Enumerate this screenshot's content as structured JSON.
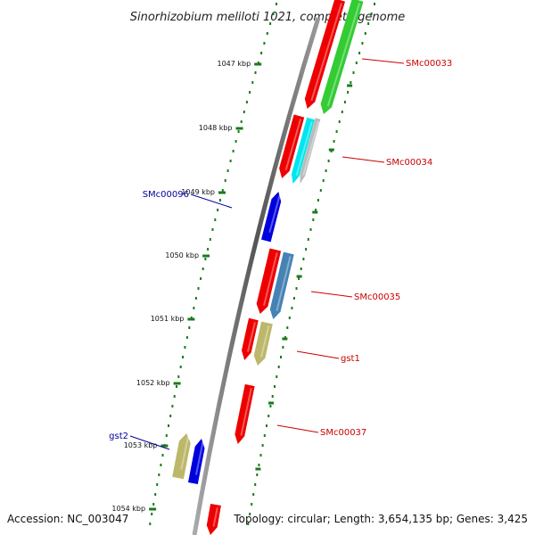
{
  "title": "Sinorhizobium meliloti 1021, complete genome",
  "accession_text": "Accession: NC_003047",
  "topology_text": "Topology: circular; Length: 3,654,135 bp; Genes: 3,425",
  "colors": {
    "backbone": "#777777",
    "tick": "#1a7a1a",
    "label_red": "#cc0000",
    "label_blue": "#00009a"
  },
  "ticks": [
    {
      "label": "1047 kbp"
    },
    {
      "label": "1048 kbp"
    },
    {
      "label": "1049 kbp"
    },
    {
      "label": "1050 kbp"
    },
    {
      "label": "1051 kbp"
    },
    {
      "label": "1052 kbp"
    },
    {
      "label": "1053 kbp"
    },
    {
      "label": "1054 kbp"
    }
  ],
  "gene_labels": [
    {
      "text": "SMc00033",
      "side": "right",
      "color": "red"
    },
    {
      "text": "SMc00034",
      "side": "right",
      "color": "red"
    },
    {
      "text": "SMc00096",
      "side": "left",
      "color": "blue"
    },
    {
      "text": "SMc00035",
      "side": "right",
      "color": "red"
    },
    {
      "text": "gst1",
      "side": "right",
      "color": "red"
    },
    {
      "text": "SMc00037",
      "side": "right",
      "color": "red"
    },
    {
      "text": "gst2",
      "side": "left",
      "color": "blue"
    }
  ],
  "features": [
    {
      "color": "#ee0000",
      "strand": "forward"
    },
    {
      "color": "#33cc33",
      "strand": "forward"
    },
    {
      "color": "#ee0000",
      "strand": "forward"
    },
    {
      "color": "#00e5ee",
      "strand": "forward"
    },
    {
      "color": "#bbbbbb",
      "strand": "forward"
    },
    {
      "color": "#0000dd",
      "strand": "reverse"
    },
    {
      "color": "#ee0000",
      "strand": "forward"
    },
    {
      "color": "#4682b4",
      "strand": "forward"
    },
    {
      "color": "#ee0000",
      "strand": "forward"
    },
    {
      "color": "#bdb76b",
      "strand": "forward"
    },
    {
      "color": "#ee0000",
      "strand": "forward"
    },
    {
      "color": "#bdb76b",
      "strand": "reverse"
    },
    {
      "color": "#0000dd",
      "strand": "reverse"
    },
    {
      "color": "#ee0000",
      "strand": "forward"
    }
  ]
}
